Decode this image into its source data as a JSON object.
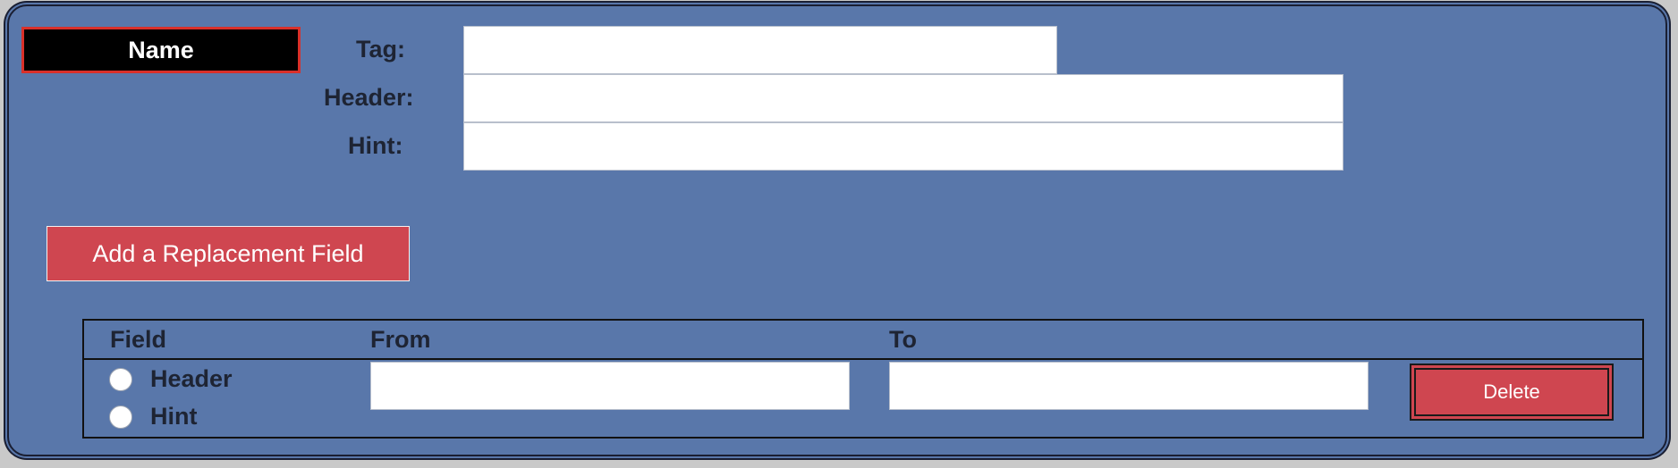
{
  "name_box": {
    "label": "Name"
  },
  "fields": {
    "tag": {
      "label": "Tag:",
      "value": "",
      "placeholder": ""
    },
    "header": {
      "label": "Header:",
      "value": "",
      "placeholder": ""
    },
    "hint": {
      "label": "Hint:",
      "value": "",
      "placeholder": ""
    }
  },
  "add_button": {
    "label": "Add a Replacement Field"
  },
  "replacement_table": {
    "columns": [
      "Field",
      "From",
      "To"
    ],
    "rows": [
      {
        "field_options": [
          "Header",
          "Hint"
        ],
        "from_value": "",
        "to_value": "",
        "delete_label": "Delete"
      }
    ]
  },
  "colors": {
    "panel_bg": "#5977aa",
    "button_red": "#cf4650",
    "name_box_border": "#d9302a"
  }
}
